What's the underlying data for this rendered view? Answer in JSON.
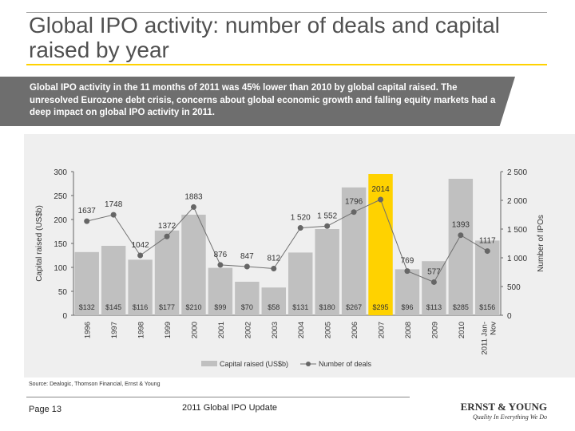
{
  "title": "Global IPO activity: number of deals and capital raised by year",
  "banner": "Global IPO activity in the 11 months of  2011 was 45% lower than 2010 by global capital raised. The unresolved Eurozone debt crisis, concerns about global economic growth and falling equity markets had a deep impact on global IPO activity in 2011.",
  "source": "Source: Dealogic, Thomson Financial, Ernst & Young",
  "footer": {
    "page": "Page 13",
    "doc": "2011 Global IPO Update",
    "logo": "ERNST & YOUNG",
    "logo_icon": "ey-logo-icon",
    "tagline": "Quality In Everything We Do"
  },
  "chart_data": {
    "type": "bar+line",
    "categories": [
      "1996",
      "1997",
      "1998",
      "1999",
      "2000",
      "2001",
      "2002",
      "2003",
      "2004",
      "2005",
      "2006",
      "2007",
      "2008",
      "2009",
      "2010",
      "2011 Jan-Nov"
    ],
    "series": [
      {
        "name": "Capital raised (US$b)",
        "type": "bar",
        "axis": "left",
        "values": [
          132,
          145,
          116,
          177,
          210,
          99,
          70,
          58,
          131,
          180,
          267,
          295,
          96,
          113,
          285,
          156
        ],
        "labels": [
          "$132",
          "$145",
          "$116",
          "$177",
          "$210",
          "$99",
          "$70",
          "$58",
          "$131",
          "$180",
          "$267",
          "$295",
          "$96",
          "$113",
          "$285",
          "$156"
        ],
        "color": "#c0c0c0",
        "highlight": {
          "index": 11,
          "color": "#ffd200"
        }
      },
      {
        "name": "Number of deals",
        "type": "line",
        "axis": "right",
        "values": [
          1637,
          1748,
          1042,
          1372,
          1883,
          876,
          847,
          812,
          1520,
          1552,
          1796,
          2014,
          769,
          577,
          1393,
          1117
        ],
        "labels": [
          "1637",
          "1748",
          "1042",
          "1372",
          "1883",
          "876",
          "847",
          "812",
          "1 520",
          "1 552",
          "1796",
          "2014",
          "769",
          "577",
          "1393",
          "1117"
        ],
        "color": "#707070"
      }
    ],
    "ylabel": "Capital raised (US$b)",
    "ylim": [
      0,
      300
    ],
    "yticks": [
      "0",
      "50",
      "100",
      "150",
      "200",
      "250",
      "300"
    ],
    "y2label": "Number of IPOs",
    "y2lim": [
      0,
      2500
    ],
    "y2ticks": [
      "0",
      "500",
      "1 000",
      "1 500",
      "2 000",
      "2 500"
    ],
    "legend": "bottom",
    "grid": false
  }
}
